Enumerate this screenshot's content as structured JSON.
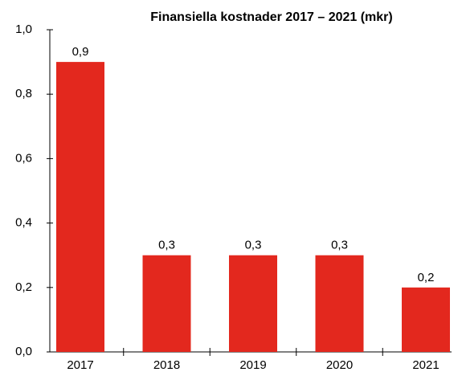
{
  "chart_data": {
    "type": "bar",
    "title": "Finansiella kostnader 2017 – 2021 (mkr)",
    "categories": [
      "2017",
      "2018",
      "2019",
      "2020",
      "2021"
    ],
    "values": [
      0.9,
      0.3,
      0.3,
      0.3,
      0.2
    ],
    "value_labels": [
      "0,9",
      "0,3",
      "0,3",
      "0,3",
      "0,2"
    ],
    "color": "#e3281e",
    "ylim": [
      0,
      1
    ],
    "yticks": [
      {
        "value": 0,
        "label": "0,0"
      },
      {
        "value": 0.2,
        "label": "0,2"
      },
      {
        "value": 0.4,
        "label": "0,4"
      },
      {
        "value": 0.6,
        "label": "0,6"
      },
      {
        "value": 0.8,
        "label": "0,8"
      },
      {
        "value": 1,
        "label": "1,0"
      }
    ],
    "grid": false
  }
}
